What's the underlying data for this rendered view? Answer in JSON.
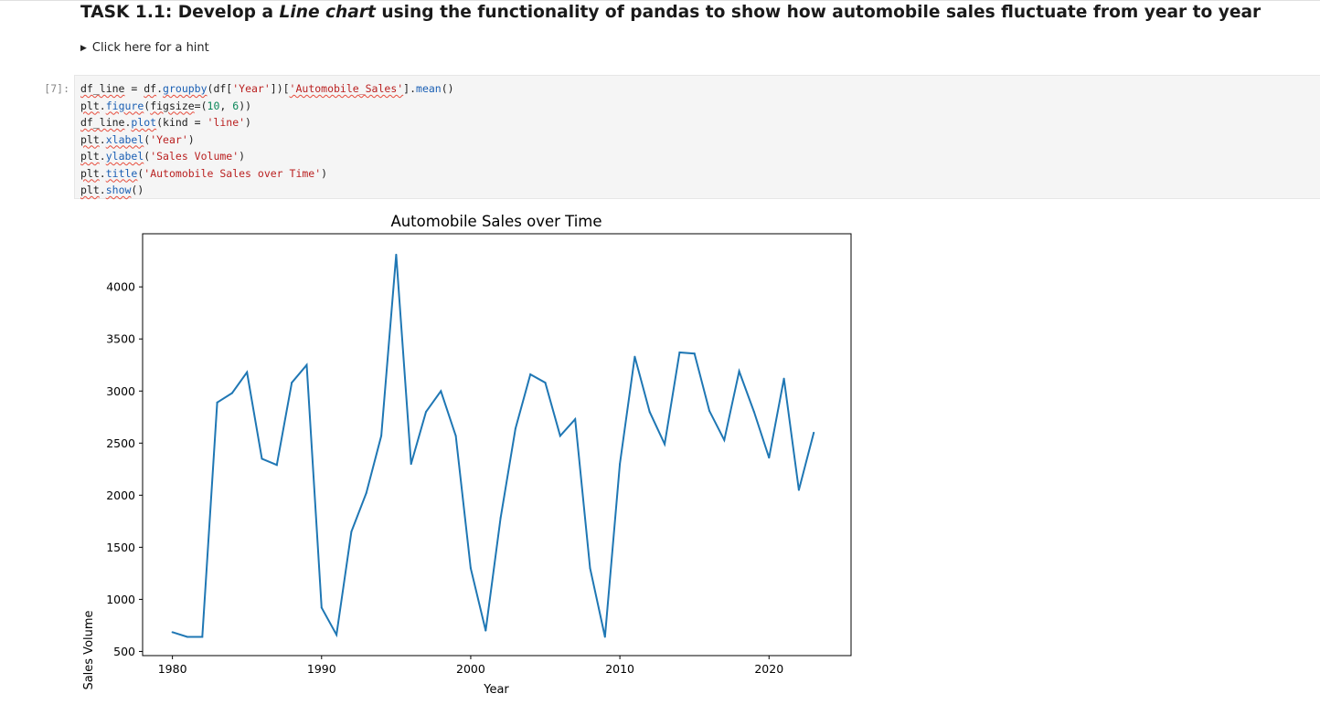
{
  "notebook": {
    "heading": {
      "prefix": "TASK 1.1: Develop a ",
      "emphasis": "Line chart",
      "suffix": " using the functionality of pandas to show how automobile sales fluctuate from year to year"
    },
    "hint_label": "Click here for a hint",
    "cell_prompt": "[7]:"
  },
  "code_cell": {
    "lines": [
      [
        {
          "t": "df_line",
          "s": "sq"
        },
        {
          "t": " = "
        },
        {
          "t": "df",
          "s": "sq"
        },
        {
          "t": "."
        },
        {
          "t": "groupby",
          "s": "sq fn"
        },
        {
          "t": "(df["
        },
        {
          "t": "'Year'",
          "s": "str"
        },
        {
          "t": "])["
        },
        {
          "t": "'Automobile_Sales'",
          "s": "str sq"
        },
        {
          "t": "]."
        },
        {
          "t": "mean",
          "s": "fn"
        },
        {
          "t": "()"
        }
      ],
      [
        {
          "t": "plt",
          "s": "sq"
        },
        {
          "t": "."
        },
        {
          "t": "figure",
          "s": "sq fn"
        },
        {
          "t": "("
        },
        {
          "t": "figsize",
          "s": "sq"
        },
        {
          "t": "=("
        },
        {
          "t": "10",
          "s": "num"
        },
        {
          "t": ", "
        },
        {
          "t": "6",
          "s": "num"
        },
        {
          "t": "))"
        }
      ],
      [
        {
          "t": "df_line",
          "s": "sq"
        },
        {
          "t": "."
        },
        {
          "t": "plot",
          "s": "sq fn"
        },
        {
          "t": "(kind = "
        },
        {
          "t": "'line'",
          "s": "str"
        },
        {
          "t": ")"
        }
      ],
      [
        {
          "t": "plt",
          "s": "sq"
        },
        {
          "t": "."
        },
        {
          "t": "xlabel",
          "s": "sq fn"
        },
        {
          "t": "("
        },
        {
          "t": "'Year'",
          "s": "str"
        },
        {
          "t": ")"
        }
      ],
      [
        {
          "t": "plt",
          "s": "sq"
        },
        {
          "t": "."
        },
        {
          "t": "ylabel",
          "s": "sq fn"
        },
        {
          "t": "("
        },
        {
          "t": "'Sales Volume'",
          "s": "str"
        },
        {
          "t": ")"
        }
      ],
      [
        {
          "t": "plt",
          "s": "sq"
        },
        {
          "t": "."
        },
        {
          "t": "title",
          "s": "sq fn"
        },
        {
          "t": "("
        },
        {
          "t": "'Automobile Sales over Time'",
          "s": "str"
        },
        {
          "t": ")"
        }
      ],
      [
        {
          "t": "plt",
          "s": "sq"
        },
        {
          "t": "."
        },
        {
          "t": "show",
          "s": "sq fn"
        },
        {
          "t": "()"
        }
      ]
    ]
  },
  "chart_data": {
    "type": "line",
    "title": "Automobile Sales over Time",
    "xlabel": "Year",
    "ylabel": "Sales Volume",
    "xlim": [
      1978,
      2025.5
    ],
    "ylim": [
      460,
      4510
    ],
    "xticks": [
      1980,
      1990,
      2000,
      2010,
      2020
    ],
    "yticks": [
      500,
      1000,
      1500,
      2000,
      2500,
      3000,
      3500,
      4000
    ],
    "grid": false,
    "line_color": "#1f77b4",
    "x": [
      1980,
      1981,
      1982,
      1983,
      1984,
      1985,
      1986,
      1987,
      1988,
      1989,
      1990,
      1991,
      1992,
      1993,
      1994,
      1995,
      1996,
      1997,
      1998,
      1999,
      2000,
      2001,
      2002,
      2003,
      2004,
      2005,
      2006,
      2007,
      2008,
      2009,
      2010,
      2011,
      2012,
      2013,
      2014,
      2015,
      2016,
      2017,
      2018,
      2019,
      2020,
      2021,
      2022,
      2023
    ],
    "y": [
      685,
      640,
      640,
      2890,
      2980,
      3180,
      2350,
      2290,
      3080,
      3250,
      920,
      660,
      1650,
      2020,
      2570,
      4310,
      2300,
      2800,
      3000,
      2570,
      1300,
      700,
      1780,
      2640,
      3160,
      3080,
      2570,
      2730,
      1300,
      640,
      2300,
      3330,
      2800,
      2490,
      3370,
      3360,
      2810,
      2530,
      3190,
      2800,
      2360,
      3120,
      2050,
      2600
    ]
  }
}
